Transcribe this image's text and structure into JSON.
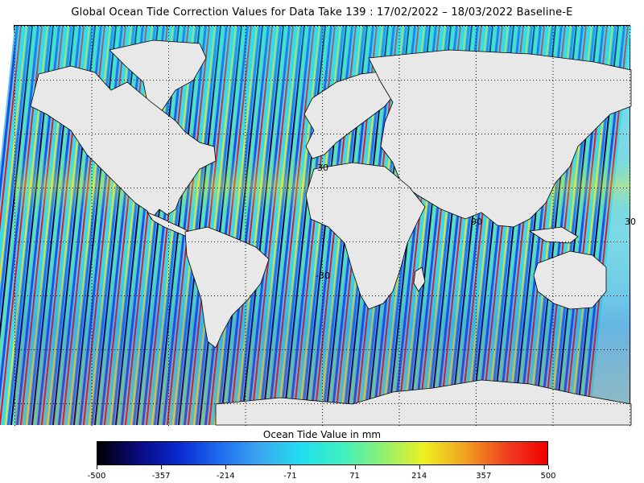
{
  "title": "Global Ocean Tide Correction Values for Data Take 139 : 17/02/2022 – 18/03/2022 Baseline-E",
  "map": {
    "grid_labels": [
      "30",
      "90",
      "30",
      "-30"
    ],
    "land_color": "#e8e8e8",
    "ocean_base_color": "#7fd8e6"
  },
  "colorbar": {
    "title": "Ocean Tide Value in mm",
    "min": -500,
    "max": 500,
    "tick_labels": [
      "-500",
      "-357",
      "-214",
      "-71",
      "71",
      "214",
      "357",
      "500"
    ],
    "colors": [
      "#000000",
      "#0a0a80",
      "#0a2ad0",
      "#1e6cf0",
      "#3ca8f0",
      "#20e0f0",
      "#40f0c0",
      "#90f070",
      "#f0f020",
      "#f0a020",
      "#f04020",
      "#f00000"
    ]
  }
}
